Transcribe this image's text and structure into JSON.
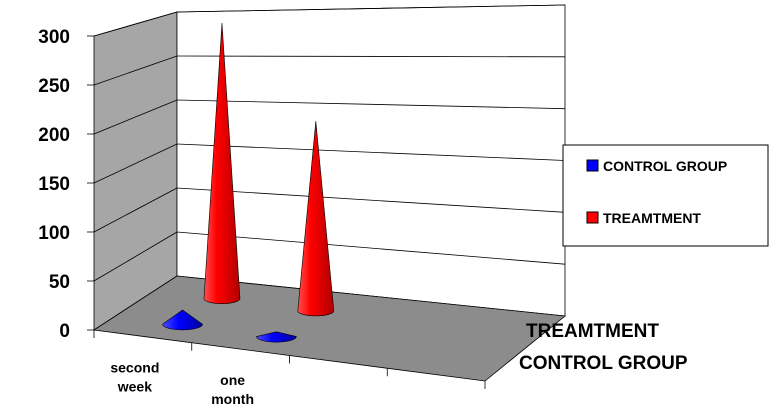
{
  "chart_data": {
    "type": "bar",
    "style": "3d-cone",
    "title": "",
    "xlabel": "",
    "ylabel": "",
    "categories": [
      "second week",
      "one month"
    ],
    "category_lines": [
      [
        "second",
        "week"
      ],
      [
        "one",
        "month"
      ]
    ],
    "depth_labels": [
      "TREAMTMENT",
      "CONTROL GROUP"
    ],
    "series": [
      {
        "name": "CONTROL GROUP",
        "values": [
          15,
          5
        ],
        "color": "#0000ff"
      },
      {
        "name": "TREAMTMENT",
        "values": [
          305,
          210
        ],
        "color": "#ff0000"
      }
    ],
    "ylim": [
      0,
      300
    ],
    "yticks": [
      "0",
      "50",
      "100",
      "150",
      "200",
      "250",
      "300"
    ],
    "grid": true,
    "legend_position": "right",
    "wall_color": "#a6a6a6",
    "floor_color": "#8c8c8c"
  }
}
